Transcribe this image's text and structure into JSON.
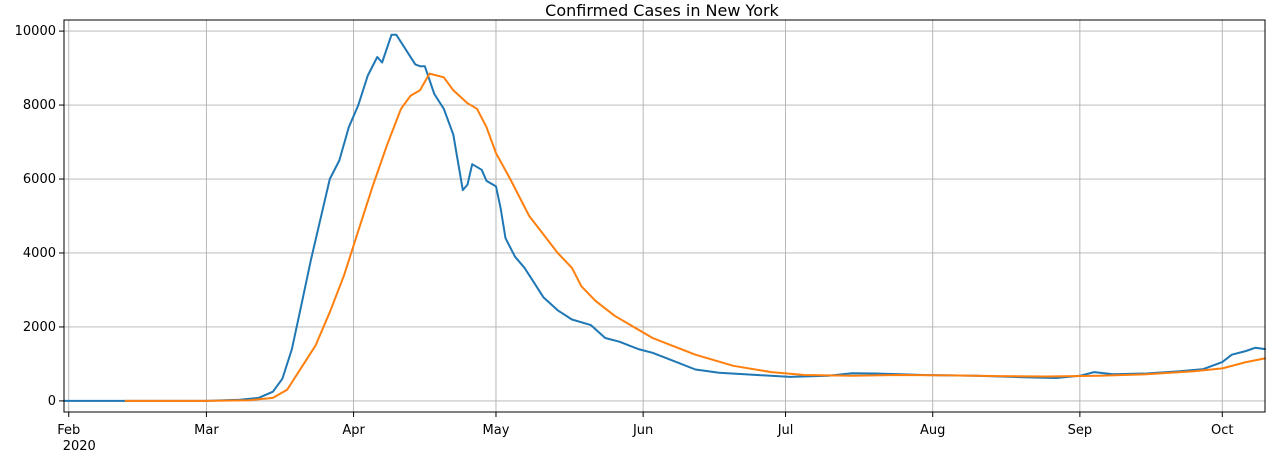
{
  "chart_data": {
    "type": "line",
    "title": "Confirmed Cases in  New York",
    "xlabel": "",
    "ylabel": "",
    "xlim": [
      "2020-01-31",
      "2020-10-10"
    ],
    "ylim": [
      -300,
      10300
    ],
    "grid": true,
    "legend": "none",
    "y_ticks": [
      {
        "value": 0,
        "label": "0"
      },
      {
        "value": 2000,
        "label": "2000"
      },
      {
        "value": 4000,
        "label": "4000"
      },
      {
        "value": 6000,
        "label": "6000"
      },
      {
        "value": 8000,
        "label": "8000"
      },
      {
        "value": 10000,
        "label": "10000"
      }
    ],
    "x_ticks": [
      {
        "date": "2020-02-01",
        "label": "Feb",
        "sublabel": "2020"
      },
      {
        "date": "2020-03-01",
        "label": "Mar"
      },
      {
        "date": "2020-04-01",
        "label": "Apr"
      },
      {
        "date": "2020-05-01",
        "label": "May"
      },
      {
        "date": "2020-06-01",
        "label": "Jun"
      },
      {
        "date": "2020-07-01",
        "label": "Jul"
      },
      {
        "date": "2020-08-01",
        "label": "Aug"
      },
      {
        "date": "2020-09-01",
        "label": "Sep"
      },
      {
        "date": "2020-10-01",
        "label": "Oct"
      }
    ],
    "series": [
      {
        "color": "#1f77b4",
        "points": [
          [
            "2020-01-31",
            0
          ],
          [
            "2020-02-13",
            0
          ],
          [
            "2020-03-01",
            0
          ],
          [
            "2020-03-08",
            30
          ],
          [
            "2020-03-12",
            80
          ],
          [
            "2020-03-15",
            250
          ],
          [
            "2020-03-17",
            600
          ],
          [
            "2020-03-19",
            1400
          ],
          [
            "2020-03-21",
            2600
          ],
          [
            "2020-03-23",
            3800
          ],
          [
            "2020-03-25",
            4900
          ],
          [
            "2020-03-27",
            6000
          ],
          [
            "2020-03-29",
            6500
          ],
          [
            "2020-03-31",
            7400
          ],
          [
            "2020-04-02",
            8000
          ],
          [
            "2020-04-04",
            8800
          ],
          [
            "2020-04-06",
            9300
          ],
          [
            "2020-04-07",
            9150
          ],
          [
            "2020-04-09",
            9900
          ],
          [
            "2020-04-10",
            9900
          ],
          [
            "2020-04-12",
            9500
          ],
          [
            "2020-04-14",
            9100
          ],
          [
            "2020-04-15",
            9050
          ],
          [
            "2020-04-16",
            9050
          ],
          [
            "2020-04-18",
            8300
          ],
          [
            "2020-04-20",
            7900
          ],
          [
            "2020-04-22",
            7200
          ],
          [
            "2020-04-24",
            5700
          ],
          [
            "2020-04-25",
            5850
          ],
          [
            "2020-04-26",
            6400
          ],
          [
            "2020-04-28",
            6250
          ],
          [
            "2020-04-29",
            5950
          ],
          [
            "2020-05-01",
            5800
          ],
          [
            "2020-05-02",
            5200
          ],
          [
            "2020-05-03",
            4400
          ],
          [
            "2020-05-05",
            3900
          ],
          [
            "2020-05-07",
            3600
          ],
          [
            "2020-05-09",
            3200
          ],
          [
            "2020-05-11",
            2800
          ],
          [
            "2020-05-14",
            2450
          ],
          [
            "2020-05-17",
            2200
          ],
          [
            "2020-05-21",
            2050
          ],
          [
            "2020-05-24",
            1700
          ],
          [
            "2020-05-27",
            1600
          ],
          [
            "2020-05-31",
            1400
          ],
          [
            "2020-06-03",
            1300
          ],
          [
            "2020-06-07",
            1100
          ],
          [
            "2020-06-12",
            850
          ],
          [
            "2020-06-17",
            760
          ],
          [
            "2020-06-25",
            700
          ],
          [
            "2020-07-02",
            650
          ],
          [
            "2020-07-10",
            680
          ],
          [
            "2020-07-15",
            750
          ],
          [
            "2020-07-20",
            740
          ],
          [
            "2020-07-30",
            700
          ],
          [
            "2020-08-10",
            680
          ],
          [
            "2020-08-20",
            640
          ],
          [
            "2020-08-27",
            620
          ],
          [
            "2020-09-01",
            680
          ],
          [
            "2020-09-04",
            780
          ],
          [
            "2020-09-08",
            720
          ],
          [
            "2020-09-15",
            740
          ],
          [
            "2020-09-22",
            800
          ],
          [
            "2020-09-27",
            860
          ],
          [
            "2020-10-01",
            1050
          ],
          [
            "2020-10-03",
            1250
          ],
          [
            "2020-10-06",
            1350
          ],
          [
            "2020-10-08",
            1440
          ],
          [
            "2020-10-10",
            1400
          ]
        ]
      },
      {
        "color": "#ff7f0e",
        "points": [
          [
            "2020-02-13",
            0
          ],
          [
            "2020-03-01",
            0
          ],
          [
            "2020-03-10",
            20
          ],
          [
            "2020-03-15",
            80
          ],
          [
            "2020-03-18",
            300
          ],
          [
            "2020-03-21",
            900
          ],
          [
            "2020-03-24",
            1500
          ],
          [
            "2020-03-27",
            2400
          ],
          [
            "2020-03-30",
            3400
          ],
          [
            "2020-04-02",
            4600
          ],
          [
            "2020-04-05",
            5800
          ],
          [
            "2020-04-08",
            6900
          ],
          [
            "2020-04-11",
            7900
          ],
          [
            "2020-04-13",
            8250
          ],
          [
            "2020-04-15",
            8400
          ],
          [
            "2020-04-17",
            8850
          ],
          [
            "2020-04-20",
            8750
          ],
          [
            "2020-04-22",
            8400
          ],
          [
            "2020-04-25",
            8050
          ],
          [
            "2020-04-27",
            7900
          ],
          [
            "2020-04-29",
            7400
          ],
          [
            "2020-05-01",
            6700
          ],
          [
            "2020-05-04",
            6000
          ],
          [
            "2020-05-06",
            5500
          ],
          [
            "2020-05-08",
            5000
          ],
          [
            "2020-05-11",
            4500
          ],
          [
            "2020-05-14",
            4000
          ],
          [
            "2020-05-17",
            3600
          ],
          [
            "2020-05-19",
            3100
          ],
          [
            "2020-05-22",
            2700
          ],
          [
            "2020-05-26",
            2300
          ],
          [
            "2020-05-30",
            2000
          ],
          [
            "2020-06-03",
            1700
          ],
          [
            "2020-06-07",
            1500
          ],
          [
            "2020-06-12",
            1250
          ],
          [
            "2020-06-20",
            950
          ],
          [
            "2020-06-28",
            780
          ],
          [
            "2020-07-05",
            700
          ],
          [
            "2020-07-15",
            680
          ],
          [
            "2020-07-25",
            700
          ],
          [
            "2020-08-05",
            690
          ],
          [
            "2020-08-15",
            670
          ],
          [
            "2020-08-25",
            660
          ],
          [
            "2020-09-05",
            680
          ],
          [
            "2020-09-15",
            720
          ],
          [
            "2020-09-25",
            800
          ],
          [
            "2020-10-01",
            880
          ],
          [
            "2020-10-06",
            1050
          ],
          [
            "2020-10-10",
            1150
          ]
        ]
      }
    ]
  }
}
